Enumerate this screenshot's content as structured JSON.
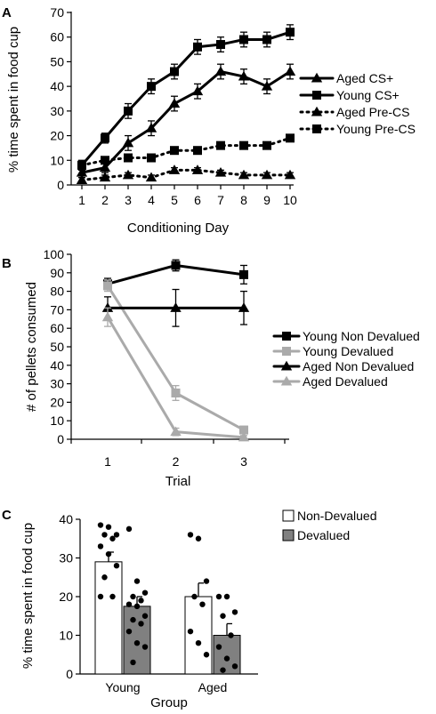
{
  "chart_data": [
    {
      "panel_label": "A",
      "type": "line",
      "ylabel": "% time spent in food cup",
      "xlabel": "Conditioning Day",
      "x": [
        1,
        2,
        3,
        4,
        5,
        6,
        7,
        8,
        9,
        10
      ],
      "xticks": [
        "1",
        "2",
        "3",
        "4",
        "5",
        "6",
        "7",
        "8",
        "9",
        "10"
      ],
      "ylim": [
        0,
        70
      ],
      "yticks": [
        "0",
        "10",
        "20",
        "30",
        "40",
        "50",
        "60",
        "70"
      ],
      "grid": false,
      "legend_position": "right",
      "series": [
        {
          "name": "Aged CS+",
          "marker": "triangle",
          "line": "solid",
          "color": "#000000",
          "values": [
            5,
            7,
            17,
            23,
            33,
            38,
            46,
            44,
            40,
            46
          ],
          "errors": [
            2,
            2,
            3,
            3,
            3,
            3,
            3,
            3,
            3,
            3
          ]
        },
        {
          "name": "Young CS+",
          "marker": "square",
          "line": "solid",
          "color": "#000000",
          "values": [
            8,
            19,
            30,
            40,
            46,
            56,
            57,
            59,
            59,
            62
          ],
          "errors": [
            2,
            2,
            3,
            3,
            3,
            3,
            3,
            3,
            3,
            3
          ]
        },
        {
          "name": "Aged Pre-CS",
          "marker": "triangle",
          "line": "dotted",
          "color": "#000000",
          "values": [
            2,
            3,
            4,
            3,
            6,
            6,
            5,
            4,
            4,
            4
          ],
          "errors": [
            1,
            1,
            1,
            1,
            1,
            1,
            1,
            1,
            1,
            1
          ]
        },
        {
          "name": "Young Pre-CS",
          "marker": "square",
          "line": "dotted",
          "color": "#000000",
          "values": [
            8,
            10,
            11,
            11,
            14,
            14,
            16,
            16,
            16,
            19
          ],
          "errors": [
            1,
            1,
            1,
            1,
            1,
            1,
            1,
            1,
            1,
            1
          ]
        }
      ]
    },
    {
      "panel_label": "B",
      "type": "line",
      "ylabel": "# of pellets consumed",
      "xlabel": "Trial",
      "x": [
        1,
        2,
        3
      ],
      "xticks": [
        "1",
        "2",
        "3"
      ],
      "ylim": [
        0,
        100
      ],
      "yticks": [
        "0",
        "10",
        "20",
        "30",
        "40",
        "50",
        "60",
        "70",
        "80",
        "90",
        "100"
      ],
      "grid": false,
      "legend_position": "right",
      "series": [
        {
          "name": "Young Non Devalued",
          "marker": "square",
          "line": "solid",
          "color": "#000000",
          "values": [
            84,
            94,
            89
          ],
          "errors": [
            3,
            3,
            5
          ]
        },
        {
          "name": "Young Devalued",
          "marker": "square",
          "line": "solid",
          "color": "#aaaaaa",
          "values": [
            83,
            25,
            5
          ],
          "errors": [
            3,
            4,
            2
          ]
        },
        {
          "name": "Aged Non Devalued",
          "marker": "triangle",
          "line": "solid",
          "color": "#000000",
          "values": [
            71,
            71,
            71
          ],
          "errors": [
            6,
            10,
            9
          ]
        },
        {
          "name": "Aged Devalued",
          "marker": "triangle",
          "line": "solid",
          "color": "#aaaaaa",
          "values": [
            66,
            4,
            1
          ],
          "errors": [
            5,
            2,
            1
          ]
        }
      ]
    },
    {
      "panel_label": "C",
      "type": "bar",
      "ylabel": "% time spent in food cup",
      "xlabel": "Group",
      "categories": [
        "Young",
        "Aged"
      ],
      "ylim": [
        0,
        40
      ],
      "yticks": [
        "0",
        "10",
        "20",
        "30",
        "40"
      ],
      "grid": false,
      "legend_position": "top-right",
      "series": [
        {
          "name": "Non-Devalued",
          "color": "#ffffff",
          "values": [
            29,
            20
          ],
          "errors": [
            2.5,
            3.5
          ],
          "points": [
            [
              38.5,
              38,
              36,
              36,
              35,
              33,
              31,
              28,
              25,
              20,
              20
            ],
            [
              36,
              35,
              24,
              20,
              18,
              11,
              8,
              5
            ]
          ]
        },
        {
          "name": "Devalued",
          "color": "#7f7f7f",
          "values": [
            17.5,
            10
          ],
          "errors": [
            2.5,
            3
          ],
          "points": [
            [
              37.5,
              24,
              21,
              20,
              19,
              18,
              17.5,
              15,
              14,
              13,
              11,
              8,
              7,
              3
            ],
            [
              20,
              20,
              16,
              15,
              10,
              7,
              4,
              2,
              1
            ]
          ]
        }
      ]
    }
  ]
}
